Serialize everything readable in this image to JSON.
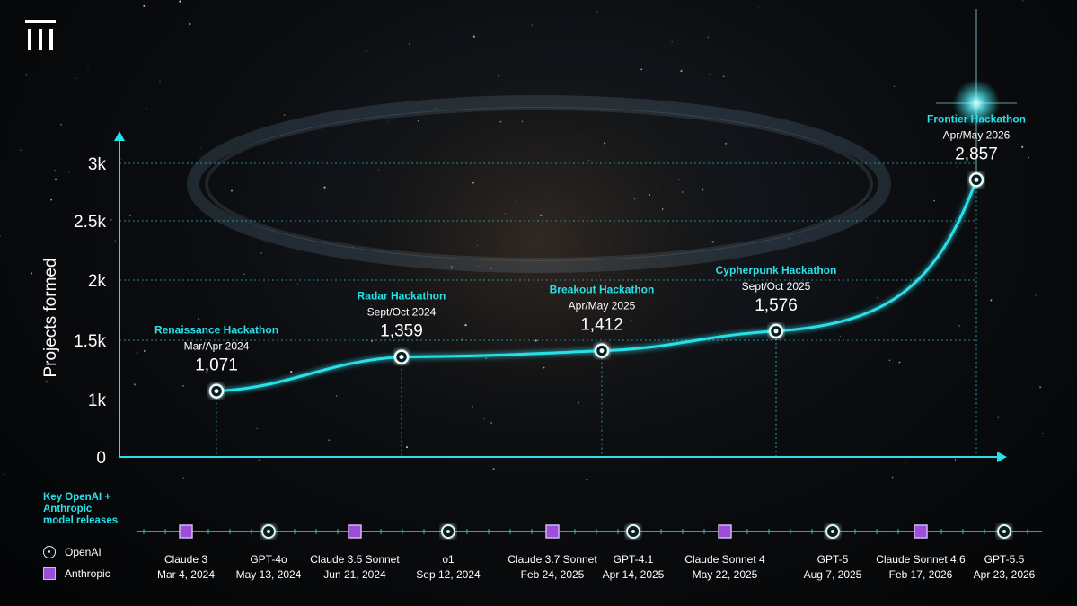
{
  "chart_data": {
    "type": "line",
    "title": "",
    "xlabel": "",
    "ylabel": "Projects formed",
    "ylim": [
      0,
      3000
    ],
    "y_ticks": [
      "0",
      "1k",
      "1.5k",
      "2k",
      "2.5k",
      "3k"
    ],
    "y_tick_values": [
      0,
      1000,
      1500,
      2000,
      2500,
      3000
    ],
    "grid": "dotted horizontal at 1.5k, 2k, 2.5k, 3k",
    "series": [
      {
        "points": [
          {
            "event": "Renaissance Hackathon",
            "period": "Mar/Apr 2024",
            "value": 1071,
            "value_label": "1,071"
          },
          {
            "event": "Radar Hackathon",
            "period": "Sept/Oct 2024",
            "value": 1359,
            "value_label": "1,359"
          },
          {
            "event": "Breakout Hackathon",
            "period": "Apr/May 2025",
            "value": 1412,
            "value_label": "1,412"
          },
          {
            "event": "Cypherpunk Hackathon",
            "period": "Sept/Oct 2025",
            "value": 1576,
            "value_label": "1,576"
          },
          {
            "event": "Frontier Hackathon",
            "period": "Apr/May 2026",
            "value": 2857,
            "value_label": "2,857"
          }
        ]
      }
    ],
    "colors": {
      "line": "#29e0e8",
      "openai": "#d9f6f8",
      "anthropic": "#9b4fd8"
    }
  },
  "timeline": {
    "title": "Key OpenAI + Anthropic model releases",
    "title_lines": [
      "Key OpenAI +",
      "Anthropic",
      "model releases"
    ],
    "legend": {
      "openai": "OpenAI",
      "anthropic": "Anthropic"
    },
    "releases": [
      {
        "name": "Claude 3",
        "date": "Mar 4, 2024",
        "org": "anthropic"
      },
      {
        "name": "GPT-4o",
        "date": "May 13, 2024",
        "org": "openai"
      },
      {
        "name": "Claude 3.5 Sonnet",
        "date": "Jun 21, 2024",
        "org": "anthropic"
      },
      {
        "name": "o1",
        "date": "Sep 12, 2024",
        "org": "openai"
      },
      {
        "name": "Claude 3.7 Sonnet",
        "date": "Feb 24, 2025",
        "org": "anthropic"
      },
      {
        "name": "GPT-4.1",
        "date": "Apr 14, 2025",
        "org": "openai"
      },
      {
        "name": "Claude Sonnet 4",
        "date": "May 22, 2025",
        "org": "anthropic"
      },
      {
        "name": "GPT-5",
        "date": "Aug 7, 2025",
        "org": "openai"
      },
      {
        "name": "Claude Sonnet 4.6",
        "date": "Feb 17, 2026",
        "org": "anthropic"
      },
      {
        "name": "GPT-5.5",
        "date": "Apr 23, 2026",
        "org": "openai"
      }
    ]
  }
}
